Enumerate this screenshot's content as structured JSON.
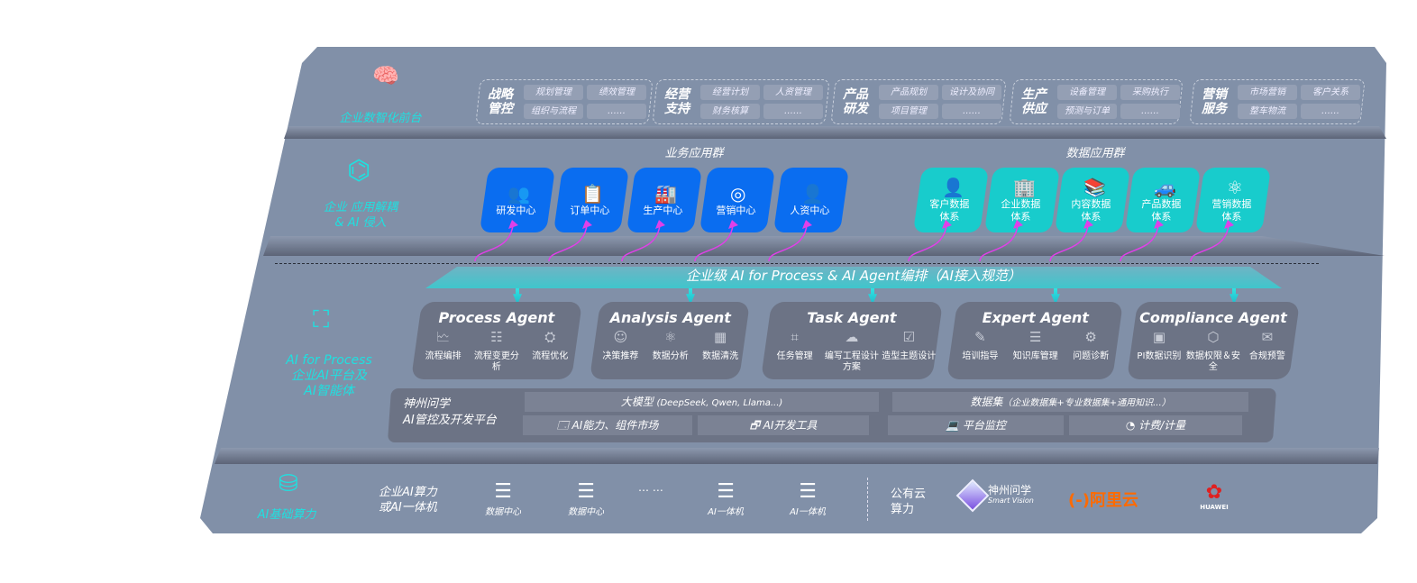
{
  "layers": {
    "front": {
      "label": "企业数智化前台",
      "icon": "brain-icon",
      "groups": [
        {
          "title": "战略管控",
          "items": [
            "规划管理",
            "绩效管理",
            "组织与流程",
            "……"
          ]
        },
        {
          "title": "经营支持",
          "items": [
            "经营计划",
            "人资管理",
            "财务核算",
            "……"
          ]
        },
        {
          "title": "产品研发",
          "items": [
            "产品规划",
            "设计及协同",
            "项目管理",
            "……"
          ]
        },
        {
          "title": "生产供应",
          "items": [
            "设备管理",
            "采购执行",
            "预测与订单",
            "……"
          ]
        },
        {
          "title": "营销服务",
          "items": [
            "市场营销",
            "客户关系",
            "整车物流",
            "……"
          ]
        }
      ]
    },
    "apps": {
      "label_line1": "企业 应用解耦",
      "label_line2": "& AI 侵入",
      "icon": "molecule-icon",
      "business": {
        "title": "业务应用群",
        "color": "#0a6df0",
        "cards": [
          {
            "label": "研发中心",
            "icon": "team-icon"
          },
          {
            "label": "订单中心",
            "icon": "clipboard-icon"
          },
          {
            "label": "生产中心",
            "icon": "factory-icon"
          },
          {
            "label": "营销中心",
            "icon": "target-icon"
          },
          {
            "label": "人资中心",
            "icon": "person-icon"
          }
        ]
      },
      "data": {
        "title": "数据应用群",
        "color": "#18cccc",
        "cards": [
          {
            "label": "客户数据体系",
            "icon": "user-icon"
          },
          {
            "label": "企业数据体系",
            "icon": "building-icon"
          },
          {
            "label": "内容数据体系",
            "icon": "books-icon"
          },
          {
            "label": "产品数据体系",
            "icon": "car-icon"
          },
          {
            "label": "营销数据体系",
            "icon": "atom-icon"
          }
        ]
      }
    },
    "ai": {
      "label_line1": "AI for Process",
      "label_line2": "企业AI平台及",
      "label_line3": "AI智能体",
      "icon": "face-scan-icon",
      "orchestration": "企业级 AI for Process & AI Agent编排（AI接入规范）",
      "agents": [
        {
          "title": "Process Agent",
          "items": [
            "流程编排",
            "流程变更分析",
            "流程优化"
          ]
        },
        {
          "title": "Analysis Agent",
          "items": [
            "决策推荐",
            "数据分析",
            "数据清洗"
          ]
        },
        {
          "title": "Task Agent",
          "items": [
            "任务管理",
            "编写工程设计方案",
            "造型主题设计"
          ]
        },
        {
          "title": "Expert Agent",
          "items": [
            "培训指导",
            "知识库管理",
            "问题诊断"
          ]
        },
        {
          "title": "Compliance Agent",
          "items": [
            "PI数据识别",
            "数据权限＆安全",
            "合规预警"
          ]
        }
      ],
      "platform": {
        "name_line1": "神州问学",
        "name_line2": "AI管控及开发平台",
        "model_title": "大模型",
        "model_sub": "(DeepSeek, Qwen, Llama...)",
        "dataset_title": "数据集",
        "dataset_sub": "（企业数据集+专业数据集+通用知识...）",
        "tools": [
          "AI能力、组件市场",
          "AI开发工具",
          "平台监控",
          "计费/计量"
        ]
      }
    },
    "infra": {
      "label": "AI基础算力",
      "icon": "database-icon",
      "private_line1": "企业AI算力",
      "private_line2": "或AI一体机",
      "servers": [
        "数据中心",
        "数据中心",
        "AI一体机",
        "AI一体机"
      ],
      "ellipsis": "… …",
      "public_line1": "公有云",
      "public_line2": "算力",
      "logos": {
        "shenzhou": "神州问学",
        "shenzhou_en": "Smart Vision",
        "aliyun": "阿里云",
        "huawei": "HUAWEI"
      }
    }
  },
  "colors": {
    "panel": "#8190a8",
    "business": "#0a6df0",
    "data": "#18cccc",
    "accent": "#1fe0e0",
    "connector": "#e040e8",
    "aliyun": "#ff6a00",
    "huawei": "#e02020"
  }
}
